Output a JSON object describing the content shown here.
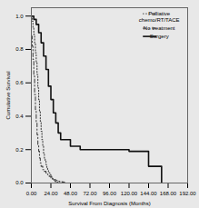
{
  "chart_data": {
    "type": "line",
    "xlabel": "Survival From Diagnosis (Months)",
    "ylabel": "Cumulative Survival",
    "xlim": [
      0,
      192
    ],
    "ylim": [
      0.0,
      1.05
    ],
    "xticks": [
      {
        "value": 0,
        "label": "0.00"
      },
      {
        "value": 24,
        "label": "24.00"
      },
      {
        "value": 48,
        "label": "48.00"
      },
      {
        "value": 72,
        "label": "72.00"
      },
      {
        "value": 96,
        "label": "96.00"
      },
      {
        "value": 120,
        "label": "120.00"
      },
      {
        "value": 144,
        "label": "144.00"
      },
      {
        "value": 168,
        "label": "168.00"
      },
      {
        "value": 192,
        "label": "192.00"
      }
    ],
    "yticks": [
      {
        "value": 0.0,
        "label": "0.0"
      },
      0.2,
      0.4,
      0.6,
      0.8,
      {
        "value": 1.0,
        "label": "1.0"
      }
    ],
    "grid": false,
    "legend": "upper right",
    "series": [
      {
        "name": "Palliative\nchemo/RT/TACE",
        "color": "#444444",
        "line_style": "dotted",
        "x": [
          0,
          1,
          2,
          3,
          4,
          5,
          6,
          7,
          8,
          9,
          10,
          11,
          12,
          13,
          14,
          15,
          16,
          17,
          18,
          19,
          20,
          21,
          22,
          23,
          24,
          25,
          26,
          27,
          28,
          29,
          30,
          31,
          32,
          33,
          34,
          35,
          36
        ],
        "values": [
          1.0,
          0.97,
          0.93,
          0.89,
          0.84,
          0.78,
          0.72,
          0.65,
          0.57,
          0.5,
          0.43,
          0.37,
          0.31,
          0.26,
          0.22,
          0.18,
          0.15,
          0.13,
          0.11,
          0.09,
          0.08,
          0.07,
          0.06,
          0.05,
          0.04,
          0.03,
          0.025,
          0.02,
          0.015,
          0.01,
          0.008,
          0.006,
          0.004,
          0.003,
          0.002,
          0.001,
          0.0
        ]
      },
      {
        "name": "No treatment",
        "color": "#444444",
        "line_style": "dashdot",
        "x": [
          0,
          1,
          2,
          3,
          4,
          5,
          6,
          7,
          8,
          9,
          10,
          11,
          12,
          14,
          16,
          18,
          20,
          22,
          24,
          26,
          28,
          30,
          32,
          34,
          36,
          38,
          40,
          42
        ],
        "values": [
          0.88,
          0.82,
          0.74,
          0.64,
          0.53,
          0.44,
          0.36,
          0.29,
          0.23,
          0.19,
          0.15,
          0.12,
          0.1,
          0.08,
          0.07,
          0.06,
          0.05,
          0.04,
          0.03,
          0.025,
          0.02,
          0.015,
          0.012,
          0.01,
          0.008,
          0.006,
          0.004,
          0.0
        ]
      },
      {
        "name": "Surgery",
        "color": "#111111",
        "line_style": "solid",
        "x": [
          0,
          3,
          6,
          9,
          12,
          15,
          18,
          21,
          24,
          27,
          30,
          33,
          36,
          48,
          60,
          72,
          96,
          120,
          144,
          148,
          160
        ],
        "values": [
          1.0,
          0.98,
          0.95,
          0.9,
          0.84,
          0.76,
          0.68,
          0.58,
          0.5,
          0.42,
          0.36,
          0.3,
          0.26,
          0.22,
          0.2,
          0.2,
          0.2,
          0.19,
          0.1,
          0.1,
          0.0
        ]
      }
    ]
  }
}
